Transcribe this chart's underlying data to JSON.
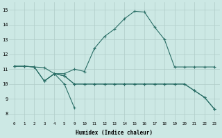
{
  "xlabel": "Humidex (Indice chaleur)",
  "bg_color": "#cce8e4",
  "grid_color": "#b0ccc8",
  "line_color": "#2a6e66",
  "xlim": [
    -0.5,
    23.5
  ],
  "ylim": [
    7.5,
    15.5
  ],
  "xtick_positions": [
    0,
    1,
    2,
    3,
    4,
    5,
    9,
    10,
    11,
    12,
    13,
    14,
    15,
    16,
    17,
    18,
    19,
    20,
    21,
    22,
    23
  ],
  "xtick_labels": [
    "0",
    "1",
    "2",
    "3",
    "4",
    "5",
    "9",
    "10",
    "11",
    "12",
    "13",
    "14",
    "15",
    "16",
    "17",
    "18",
    "19",
    "20",
    "21",
    "22",
    "23"
  ],
  "yticks": [
    8,
    9,
    10,
    11,
    12,
    13,
    14,
    15
  ],
  "series1_x": [
    0,
    1,
    2,
    3,
    4,
    5,
    9,
    10,
    11,
    12,
    13,
    14,
    15,
    16,
    17,
    18,
    19,
    20,
    21,
    22,
    23
  ],
  "series1_y": [
    11.2,
    11.2,
    11.15,
    11.1,
    10.7,
    10.7,
    11.0,
    10.85,
    12.4,
    13.2,
    13.7,
    14.4,
    14.9,
    14.85,
    13.85,
    13.0,
    11.15,
    11.15,
    11.15,
    11.15,
    11.15
  ],
  "series2_x": [
    0,
    1,
    2,
    3,
    4,
    5,
    9,
    10,
    11,
    12,
    13,
    14,
    15,
    16,
    17,
    18,
    19,
    20,
    21,
    22,
    23
  ],
  "series2_y": [
    11.2,
    11.2,
    11.15,
    10.2,
    10.7,
    10.55,
    10.0,
    10.0,
    10.0,
    10.0,
    10.0,
    10.0,
    10.0,
    10.0,
    10.0,
    10.0,
    10.0,
    10.0,
    9.55,
    9.1,
    8.3
  ],
  "series3_x": [
    3,
    4,
    5,
    9
  ],
  "series3_y": [
    10.2,
    10.7,
    10.0,
    8.4
  ],
  "series4_x": [
    0,
    1,
    2,
    3,
    4,
    5,
    9,
    10,
    11,
    12,
    13,
    14,
    15,
    16,
    17,
    18,
    19,
    20,
    21,
    22,
    23
  ],
  "series4_y": [
    11.2,
    11.2,
    11.15,
    10.2,
    10.7,
    10.55,
    10.0,
    10.0,
    10.0,
    10.0,
    10.0,
    10.0,
    10.0,
    10.0,
    10.0,
    10.0,
    10.0,
    10.0,
    9.55,
    9.1,
    8.3
  ]
}
